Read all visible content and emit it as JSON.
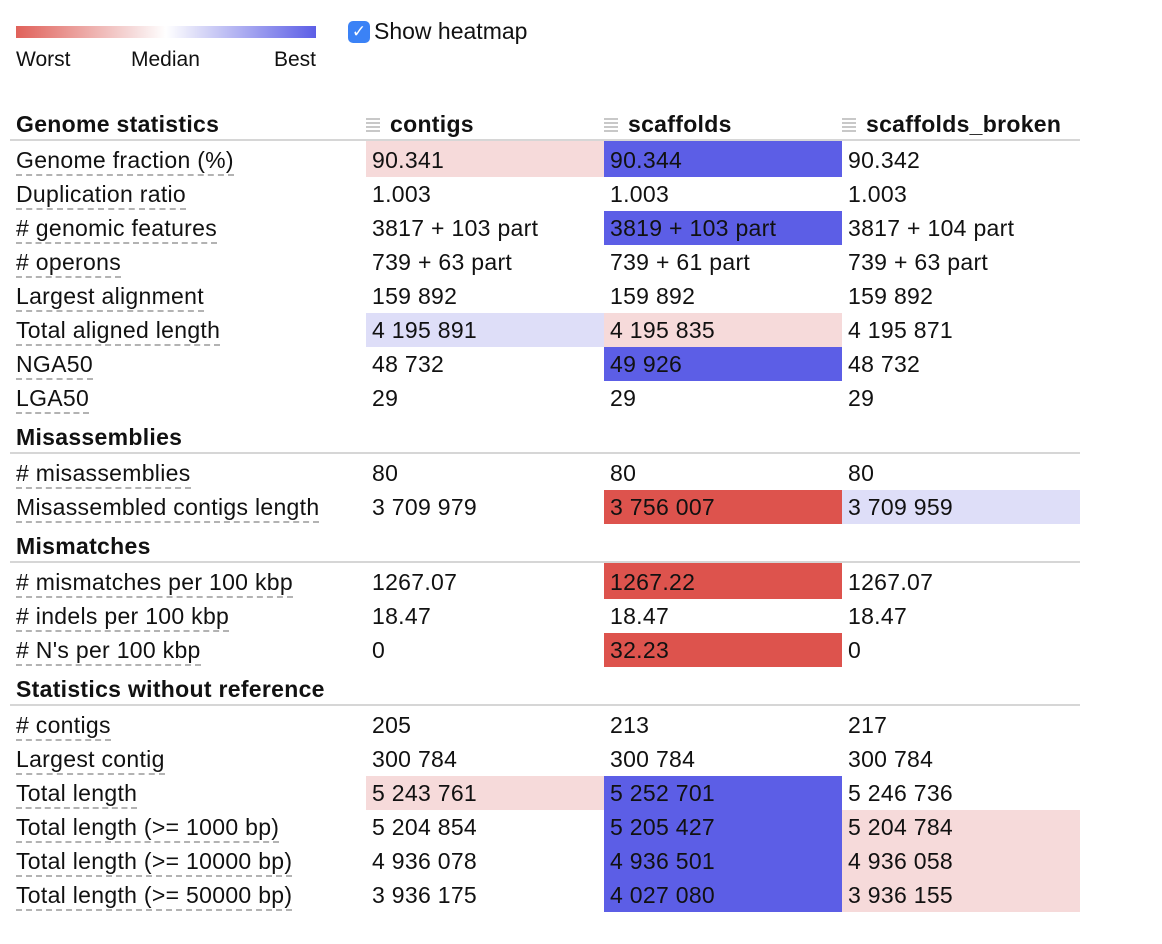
{
  "legend": {
    "worst_label": "Worst",
    "median_label": "Median",
    "best_label": "Best"
  },
  "heatmap_toggle": {
    "label": "Show heatmap",
    "checked": true
  },
  "columns": [
    "contigs",
    "scaffolds",
    "scaffolds_broken"
  ],
  "colors": {
    "best_strong": "#5c5ee6",
    "best_light": "#dedef8",
    "worst_strong": "#dd534d",
    "worst_light": "#f6dada",
    "none": "#ffffff"
  },
  "groups": [
    {
      "title": "Genome statistics",
      "rows": [
        {
          "name": "Genome fraction (%)",
          "values": [
            "90.341",
            "90.344",
            "90.342"
          ],
          "heat": [
            "worst_light",
            "best_strong",
            "none"
          ]
        },
        {
          "name": "Duplication ratio",
          "values": [
            "1.003",
            "1.003",
            "1.003"
          ],
          "heat": [
            "none",
            "none",
            "none"
          ]
        },
        {
          "name": "# genomic features",
          "values": [
            "3817 + 103 part",
            "3819 + 103 part",
            "3817 + 104 part"
          ],
          "heat": [
            "none",
            "best_strong",
            "none"
          ]
        },
        {
          "name": "# operons",
          "values": [
            "739 + 63 part",
            "739 + 61 part",
            "739 + 63 part"
          ],
          "heat": [
            "none",
            "none",
            "none"
          ]
        },
        {
          "name": "Largest alignment",
          "values": [
            "159 892",
            "159 892",
            "159 892"
          ],
          "heat": [
            "none",
            "none",
            "none"
          ]
        },
        {
          "name": "Total aligned length",
          "values": [
            "4 195 891",
            "4 195 835",
            "4 195 871"
          ],
          "heat": [
            "best_light",
            "worst_light",
            "none"
          ]
        },
        {
          "name": "NGA50",
          "values": [
            "48 732",
            "49 926",
            "48 732"
          ],
          "heat": [
            "none",
            "best_strong",
            "none"
          ]
        },
        {
          "name": "LGA50",
          "values": [
            "29",
            "29",
            "29"
          ],
          "heat": [
            "none",
            "none",
            "none"
          ]
        }
      ]
    },
    {
      "title": "Misassemblies",
      "rows": [
        {
          "name": "# misassemblies",
          "values": [
            "80",
            "80",
            "80"
          ],
          "heat": [
            "none",
            "none",
            "none"
          ]
        },
        {
          "name": "Misassembled contigs length",
          "values": [
            "3 709 979",
            "3 756 007",
            "3 709 959"
          ],
          "heat": [
            "none",
            "worst_strong",
            "best_light"
          ]
        }
      ]
    },
    {
      "title": "Mismatches",
      "rows": [
        {
          "name": "# mismatches per 100 kbp",
          "values": [
            "1267.07",
            "1267.22",
            "1267.07"
          ],
          "heat": [
            "none",
            "worst_strong",
            "none"
          ]
        },
        {
          "name": "# indels per 100 kbp",
          "values": [
            "18.47",
            "18.47",
            "18.47"
          ],
          "heat": [
            "none",
            "none",
            "none"
          ]
        },
        {
          "name": "# N's per 100 kbp",
          "values": [
            "0",
            "32.23",
            "0"
          ],
          "heat": [
            "none",
            "worst_strong",
            "none"
          ]
        }
      ]
    },
    {
      "title": "Statistics without reference",
      "rows": [
        {
          "name": "# contigs",
          "values": [
            "205",
            "213",
            "217"
          ],
          "heat": [
            "none",
            "none",
            "none"
          ]
        },
        {
          "name": "Largest contig",
          "values": [
            "300 784",
            "300 784",
            "300 784"
          ],
          "heat": [
            "none",
            "none",
            "none"
          ]
        },
        {
          "name": "Total length",
          "values": [
            "5 243 761",
            "5 252 701",
            "5 246 736"
          ],
          "heat": [
            "worst_light",
            "best_strong",
            "none"
          ]
        },
        {
          "name": "Total length (>= 1000 bp)",
          "values": [
            "5 204 854",
            "5 205 427",
            "5 204 784"
          ],
          "heat": [
            "none",
            "best_strong",
            "worst_light"
          ]
        },
        {
          "name": "Total length (>= 10000 bp)",
          "values": [
            "4 936 078",
            "4 936 501",
            "4 936 058"
          ],
          "heat": [
            "none",
            "best_strong",
            "worst_light"
          ]
        },
        {
          "name": "Total length (>= 50000 bp)",
          "values": [
            "3 936 175",
            "4 027 080",
            "3 936 155"
          ],
          "heat": [
            "none",
            "best_strong",
            "worst_light"
          ]
        }
      ]
    }
  ]
}
